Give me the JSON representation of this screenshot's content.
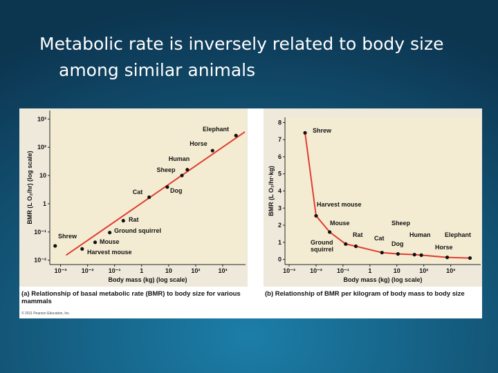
{
  "slide_title": [
    "Metabolic rate is inversely related to body size",
    "among similar animals"
  ],
  "copyright": "© 2011 Pearson Education, Inc.",
  "chart_data": [
    {
      "type": "scatter",
      "caption": "(a) Relationship of basal metabolic rate (BMR) to body size for various mammals",
      "x_label": "Body mass (kg) (log scale)",
      "y_label": "BMR (L O₂/hr) (log scale)",
      "xscale": "log",
      "yscale": "log",
      "categories": [
        "Shrew",
        "Harvest mouse",
        "Mouse",
        "Ground squirrel",
        "Rat",
        "Cat",
        "Dog",
        "Sheep",
        "Human",
        "Horse",
        "Elephant"
      ],
      "x": [
        0.00063,
        0.0063,
        0.019,
        0.066,
        0.21,
        1.9,
        8.9,
        31,
        49,
        420,
        3100
      ],
      "values": [
        0.032,
        0.025,
        0.043,
        0.095,
        0.25,
        1.7,
        3.9,
        10,
        16,
        76,
        260
      ],
      "color": "#111111",
      "trend": {
        "x": [
          0.0016,
          6600
        ],
        "values": [
          0.015,
          350
        ],
        "color": "#e03c31"
      },
      "xlim": [
        0.0004,
        7000
      ],
      "ylim": [
        0.007,
        2000
      ],
      "xticks": [
        {
          "value": 0.001,
          "label": "10⁻³"
        },
        {
          "value": 0.01,
          "label": "10⁻²"
        },
        {
          "value": 0.1,
          "label": "10⁻¹"
        },
        1,
        10,
        {
          "value": 100,
          "label": "10²"
        },
        {
          "value": 1000,
          "label": "10³"
        }
      ],
      "yticks": [
        {
          "value": 0.01,
          "label": "10⁻²"
        },
        {
          "value": 0.1,
          "label": "10⁻¹"
        },
        1,
        10,
        {
          "value": 100,
          "label": "10²"
        },
        {
          "value": 1000,
          "label": "10³"
        }
      ]
    },
    {
      "type": "line",
      "caption": "(b) Relationship of BMR per kilogram of body mass to body size",
      "x_label": "Body mass (kg) (log scale)",
      "y_label": "BMR (L O₂/hr·kg)",
      "xscale": "log",
      "categories": [
        "Shrew",
        "Harvest mouse",
        "Mouse",
        "Ground squirrel",
        "Rat",
        "Cat",
        "Dog",
        "Sheep",
        "Human",
        "Horse",
        "Elephant"
      ],
      "x": [
        0.0039,
        0.01,
        0.032,
        0.126,
        0.3,
        2.8,
        11,
        45,
        81,
        740,
        5200
      ],
      "values": [
        7.4,
        2.55,
        1.6,
        0.9,
        0.77,
        0.4,
        0.32,
        0.28,
        0.25,
        0.12,
        0.08
      ],
      "color": "#e03c31",
      "xlim": [
        0.0007,
        13000
      ],
      "ylim": [
        -0.3,
        8.3
      ],
      "xticks": [
        {
          "value": 0.001,
          "label": "10⁻³"
        },
        {
          "value": 0.01,
          "label": "10⁻²"
        },
        {
          "value": 0.1,
          "label": "10⁻¹"
        },
        1,
        10,
        {
          "value": 100,
          "label": "10²"
        },
        {
          "value": 1000,
          "label": "10³"
        }
      ],
      "yticks": [
        0,
        1,
        2,
        3,
        4,
        5,
        6,
        7,
        8
      ]
    }
  ]
}
